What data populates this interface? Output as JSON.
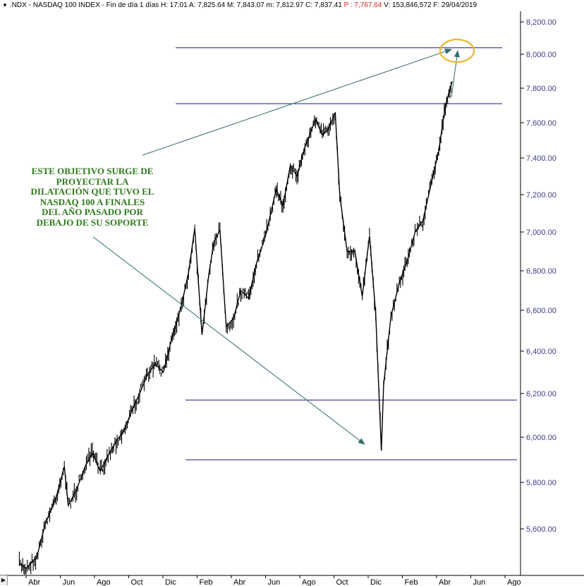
{
  "header": {
    "menu_icon": "triangle-down-icon",
    "symbol": ".NDX",
    "title": "NASDAQ 100 INDEX",
    "period": "Fin de día 1 días",
    "time": "H: 17:01",
    "open": "A: 7,825.64",
    "high": "M: 7,843.07",
    "low": "m: 7,812.97",
    "close": "C: 7,837.41",
    "change": "P : 7,767.64",
    "volume": "V: 153,846,572",
    "date": "F: 29/04/2019"
  },
  "annotation": {
    "text": "ESTE OBJETIVO SURGE DE\nPROYECTAR LA\nDILATACIÓN QUE TUVO EL\nNASDAQ 100 A FINALES\nDEL AÑO PASADO POR\nDEBAJO DE SU SOPORTE"
  },
  "colors": {
    "accent_line": "#1a1a8c",
    "arrow": "#2f6a6c",
    "annotation_text": "#2e7a1c",
    "target_circle": "#e8b830",
    "price": "#000000"
  },
  "nav": {
    "left_icon": "triangle-right-icon"
  },
  "chart_data": {
    "type": "line",
    "title": ".NDX - NASDAQ 100 INDEX",
    "xlabel": "",
    "ylabel": "",
    "ylim": [
      5440,
      8290
    ],
    "y_ticks": [
      5600,
      5800,
      6000,
      6200,
      6400,
      6600,
      6800,
      7000,
      7200,
      7400,
      7600,
      7800,
      8000,
      8200
    ],
    "y_tick_labels": [
      "5,600.00",
      "5,800.00",
      "6,000.00",
      "6,200.00",
      "6,400.00",
      "6,600.00",
      "6,800.00",
      "7,000.00",
      "7,200.00",
      "7,400.00",
      "7,600.00",
      "7,800.00",
      "8,000.00",
      "8,200.00"
    ],
    "x_ticks": [
      "Abr",
      "Jun",
      "Ago",
      "Oct",
      "Dic",
      "Feb",
      "Abr",
      "Jun",
      "Ago",
      "Oct",
      "Dic",
      "Feb",
      "Abr",
      "Jun",
      "Ago"
    ],
    "series": [
      {
        "x": [
          "2017-03-20",
          "2017-04-01",
          "2017-04-20",
          "2017-05-05",
          "2017-05-25",
          "2017-06-08",
          "2017-06-15",
          "2017-06-30",
          "2017-07-15",
          "2017-07-28",
          "2017-08-11",
          "2017-08-25",
          "2017-09-08",
          "2017-09-22",
          "2017-10-06",
          "2017-10-20",
          "2017-11-03",
          "2017-11-17",
          "2017-12-01",
          "2017-12-15",
          "2018-01-02",
          "2018-01-15",
          "2018-01-26",
          "2018-02-08",
          "2018-02-20",
          "2018-03-01",
          "2018-03-12",
          "2018-03-23",
          "2018-04-05",
          "2018-04-18",
          "2018-05-02",
          "2018-05-16",
          "2018-06-01",
          "2018-06-20",
          "2018-07-02",
          "2018-07-15",
          "2018-07-27",
          "2018-08-10",
          "2018-08-29",
          "2018-09-10",
          "2018-09-20",
          "2018-10-03",
          "2018-10-11",
          "2018-10-24",
          "2018-11-07",
          "2018-11-20",
          "2018-12-03",
          "2018-12-14",
          "2018-12-24",
          "2018-12-28",
          "2019-01-10",
          "2019-01-25",
          "2019-02-08",
          "2019-02-22",
          "2019-03-08",
          "2019-03-22",
          "2019-04-05",
          "2019-04-17",
          "2019-04-29"
        ],
        "y": [
          5440,
          5420,
          5470,
          5620,
          5740,
          5870,
          5700,
          5770,
          5870,
          5930,
          5850,
          5920,
          5980,
          6030,
          6120,
          6200,
          6290,
          6340,
          6300,
          6450,
          6620,
          6790,
          7020,
          6480,
          6780,
          6950,
          7010,
          6520,
          6560,
          6700,
          6660,
          6840,
          6980,
          7230,
          7140,
          7360,
          7300,
          7460,
          7620,
          7530,
          7560,
          7660,
          7200,
          6900,
          6900,
          6670,
          6980,
          6580,
          5940,
          6240,
          6570,
          6740,
          6850,
          7000,
          7060,
          7250,
          7440,
          7700,
          7840
        ]
      }
    ],
    "reference_lines": [
      8040,
      7710,
      6170,
      5900
    ],
    "annotations": [
      "arrow to target 8040 circle",
      "arrow from text to Dec 2018 low"
    ]
  }
}
